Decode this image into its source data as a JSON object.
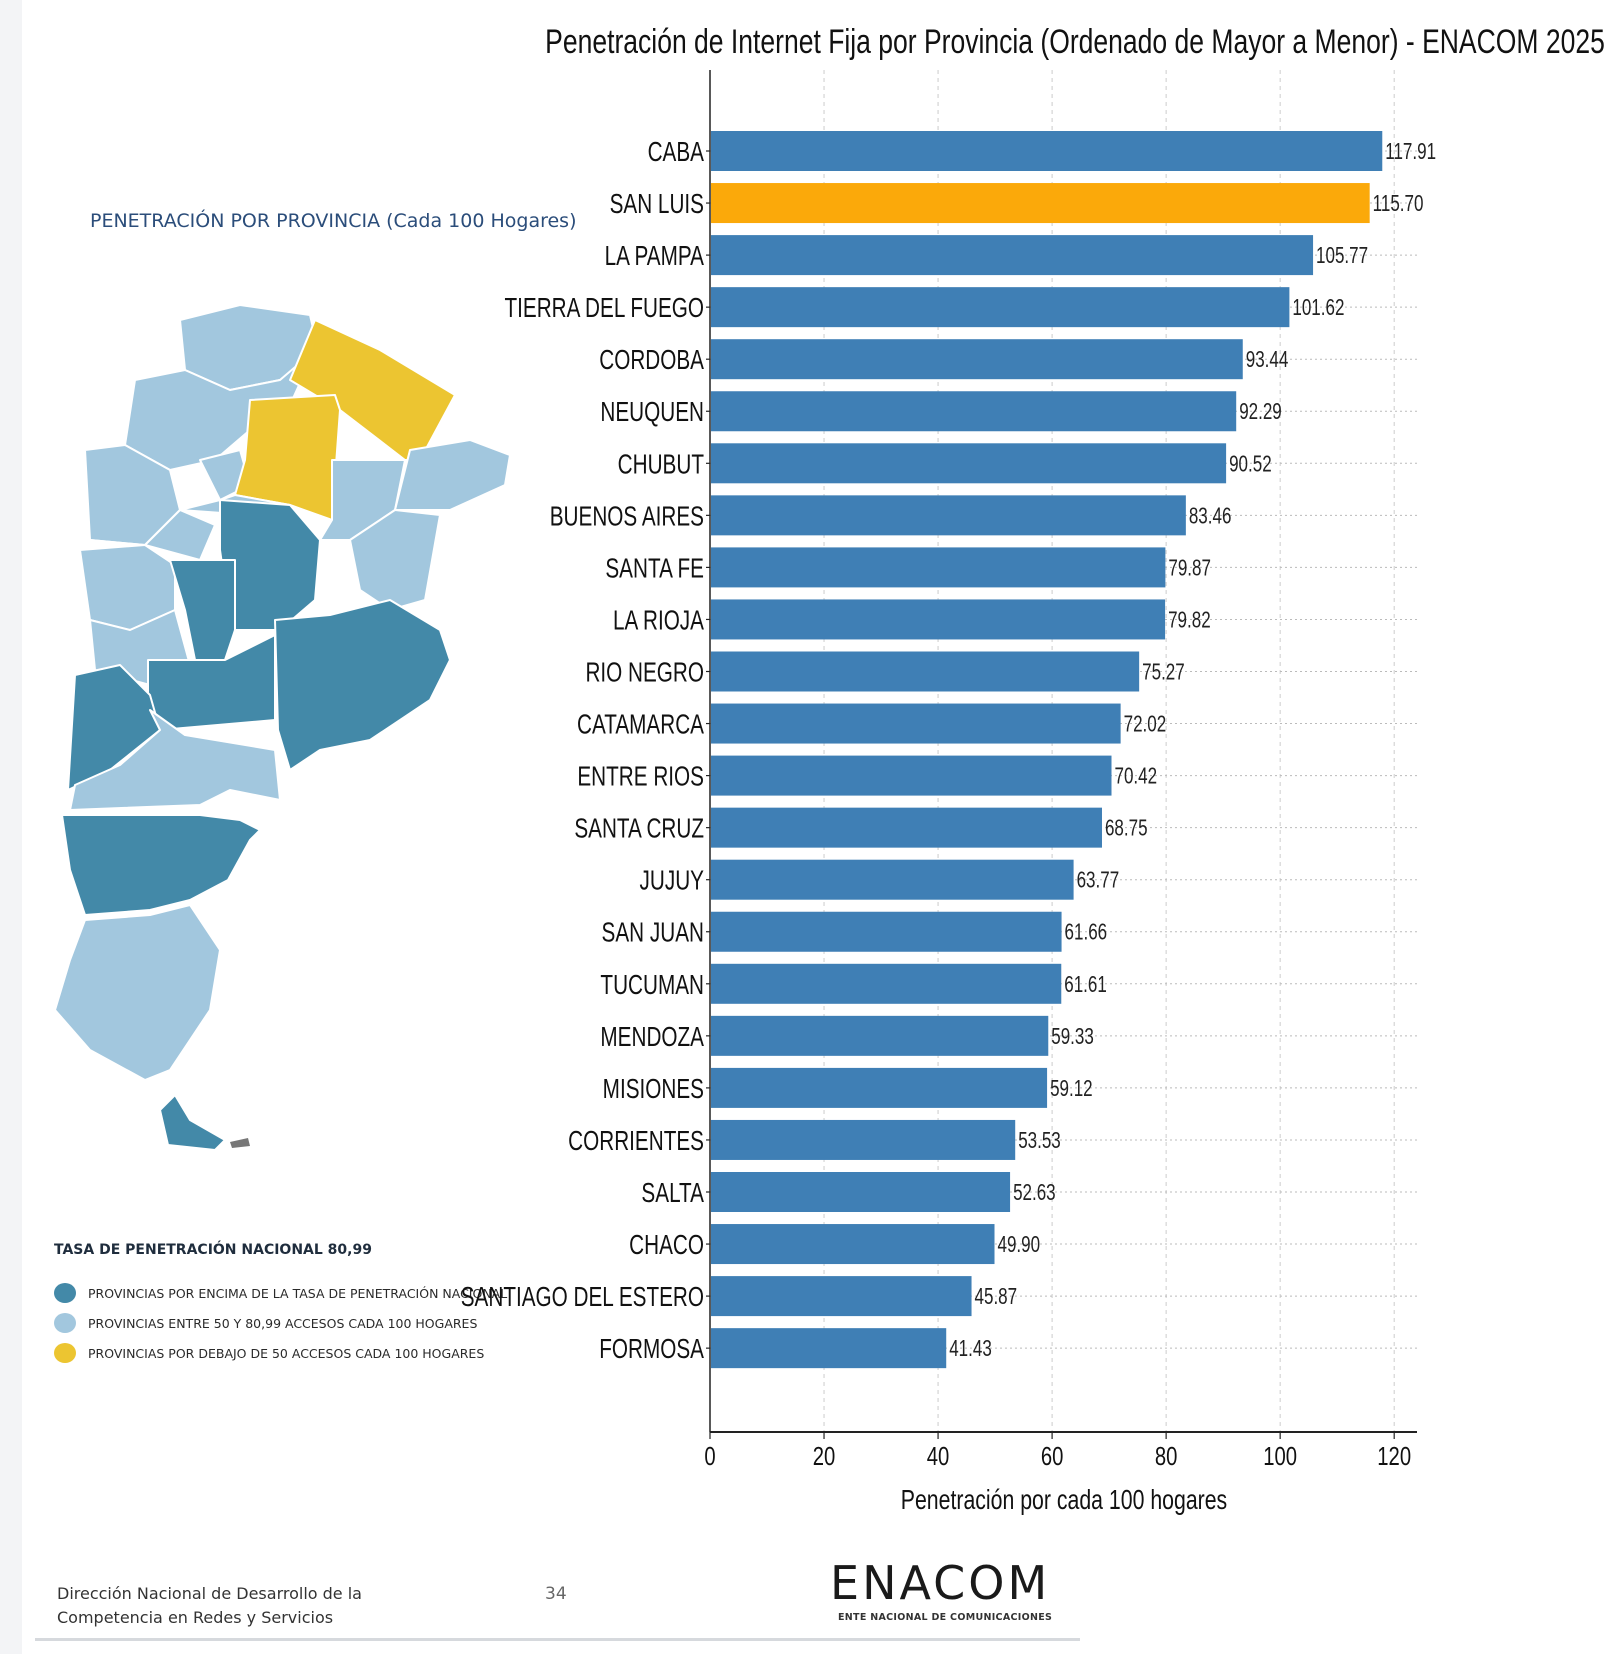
{
  "map": {
    "title": "PENETRACIÓN POR PROVINCIA (Cada 100 Hogares)",
    "colors": {
      "above": "#4389a8",
      "between": "#a2c7de",
      "below": "#ecc531"
    }
  },
  "legend": {
    "title": "TASA DE PENETRACIÓN NACIONAL 80,99",
    "items": [
      {
        "label": "PROVINCIAS POR ENCIMA DE LA TASA DE PENETRACIÓN NACIONAL",
        "color": "#4389a8"
      },
      {
        "label": "PROVINCIAS ENTRE 50 Y 80,99 ACCESOS CADA 100 HOGARES",
        "color": "#a2c7de"
      },
      {
        "label": "PROVINCIAS POR DEBAJO DE  50  ACCESOS CADA 100 HOGARES",
        "color": "#ecc531"
      }
    ]
  },
  "chart_data": {
    "type": "bar",
    "orientation": "horizontal",
    "title": "Penetración de Internet Fija por Provincia (Ordenado de Mayor a Menor) - ENACOM 2025",
    "xlabel": "Penetración por cada 100 hogares",
    "ylabel": "",
    "xlim": [
      0,
      124
    ],
    "xticks": [
      0,
      20,
      40,
      60,
      80,
      100,
      120
    ],
    "grid": "x-dashed",
    "categories": [
      "CABA",
      "SAN LUIS",
      "LA PAMPA",
      "TIERRA DEL FUEGO",
      "CORDOBA",
      "NEUQUEN",
      "CHUBUT",
      "BUENOS AIRES",
      "SANTA FE",
      "LA RIOJA",
      "RIO NEGRO",
      "CATAMARCA",
      "ENTRE RIOS",
      "SANTA CRUZ",
      "JUJUY",
      "SAN JUAN",
      "TUCUMAN",
      "MENDOZA",
      "MISIONES",
      "CORRIENTES",
      "SALTA",
      "CHACO",
      "SANTIAGO DEL ESTERO",
      "FORMOSA"
    ],
    "values": [
      117.91,
      115.7,
      105.77,
      101.62,
      93.44,
      92.29,
      90.52,
      83.46,
      79.87,
      79.82,
      75.27,
      72.02,
      70.42,
      68.75,
      63.77,
      61.66,
      61.61,
      59.33,
      59.12,
      53.53,
      52.63,
      49.9,
      45.87,
      41.43
    ],
    "value_labels": [
      "117.91",
      "115.70",
      "105.77",
      "101.62",
      "93.44",
      "92.29",
      "90.52",
      "83.46",
      "79.87",
      "79.82",
      "75.27",
      "72.02",
      "70.42",
      "68.75",
      "63.77",
      "61.66",
      "61.61",
      "59.33",
      "59.12",
      "53.53",
      "52.63",
      "49.90",
      "45.87",
      "41.43"
    ],
    "bar_color": "#3f7fb5",
    "highlight": {
      "category": "SAN LUIS",
      "color": "#fba90a"
    }
  },
  "footer": {
    "org_line1": "Dirección Nacional de Desarrollo de la",
    "org_line2": "Competencia en Redes y Servicios",
    "page_number": "34",
    "logo_text": "ENACOM",
    "logo_subtitle": "ENTE NACIONAL DE COMUNICACIONES"
  }
}
